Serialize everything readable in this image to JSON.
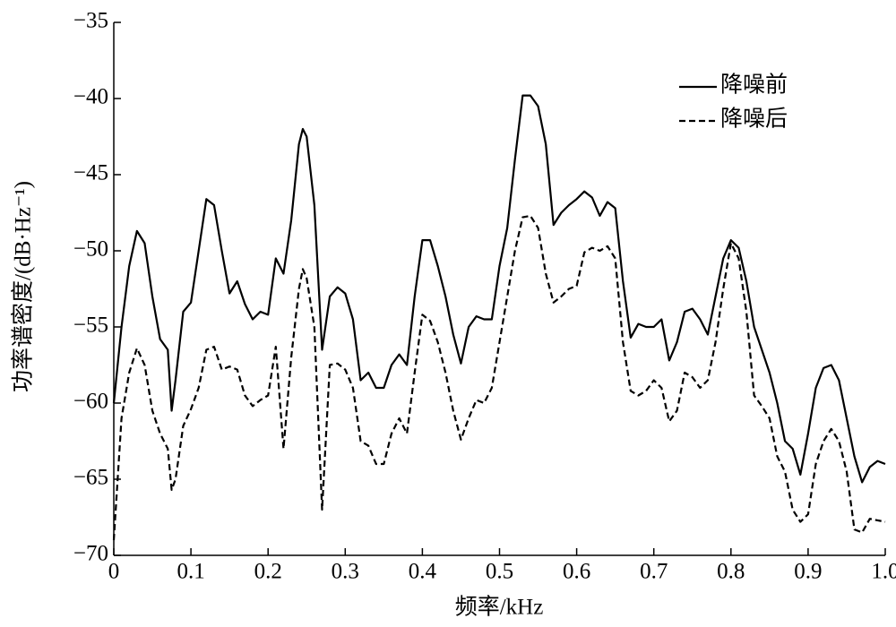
{
  "chart_data": {
    "type": "line",
    "xlabel": "频率/kHz",
    "ylabel": "功率谱密度/(dB·Hz⁻¹)",
    "x": [
      0,
      0.01,
      0.02,
      0.03,
      0.04,
      0.05,
      0.06,
      0.07,
      0.075,
      0.08,
      0.09,
      0.1,
      0.11,
      0.12,
      0.13,
      0.14,
      0.15,
      0.16,
      0.17,
      0.18,
      0.19,
      0.2,
      0.21,
      0.22,
      0.23,
      0.24,
      0.245,
      0.25,
      0.26,
      0.27,
      0.28,
      0.29,
      0.3,
      0.31,
      0.32,
      0.33,
      0.34,
      0.35,
      0.36,
      0.37,
      0.38,
      0.39,
      0.4,
      0.41,
      0.42,
      0.43,
      0.44,
      0.45,
      0.46,
      0.47,
      0.48,
      0.49,
      0.5,
      0.51,
      0.52,
      0.53,
      0.54,
      0.55,
      0.56,
      0.57,
      0.58,
      0.59,
      0.6,
      0.61,
      0.62,
      0.63,
      0.64,
      0.65,
      0.66,
      0.67,
      0.68,
      0.69,
      0.7,
      0.71,
      0.72,
      0.73,
      0.74,
      0.75,
      0.76,
      0.77,
      0.78,
      0.79,
      0.8,
      0.81,
      0.82,
      0.83,
      0.84,
      0.85,
      0.86,
      0.87,
      0.88,
      0.89,
      0.9,
      0.91,
      0.92,
      0.93,
      0.94,
      0.95,
      0.96,
      0.97,
      0.98,
      0.99,
      1.0
    ],
    "series": [
      {
        "name": "降噪前",
        "color": "#000000",
        "line_style": "solid",
        "values": [
          -60,
          -55,
          -51,
          -48.7,
          -49.5,
          -53,
          -55.8,
          -56.5,
          -60.5,
          -58.5,
          -54,
          -53.4,
          -50,
          -46.6,
          -47,
          -50,
          -52.8,
          -52,
          -53.5,
          -54.5,
          -54,
          -54.2,
          -50.5,
          -51.5,
          -48,
          -43,
          -42,
          -42.5,
          -47,
          -56.5,
          -53,
          -52.4,
          -52.8,
          -54.5,
          -58.5,
          -58,
          -59,
          -59,
          -57.5,
          -56.8,
          -57.5,
          -53,
          -49.3,
          -49.3,
          -51,
          -53,
          -55.5,
          -57.4,
          -55,
          -54.3,
          -54.5,
          -54.5,
          -51,
          -48.5,
          -44,
          -39.8,
          -39.8,
          -40.5,
          -43,
          -48.3,
          -47.5,
          -47,
          -46.6,
          -46.1,
          -46.5,
          -47.7,
          -46.8,
          -47.2,
          -52,
          -55.7,
          -54.8,
          -55,
          -55,
          -54.5,
          -57.2,
          -56,
          -54,
          -53.8,
          -54.5,
          -55.5,
          -53,
          -50.5,
          -49.3,
          -49.8,
          -52,
          -55,
          -56.5,
          -58,
          -60,
          -62.5,
          -63,
          -64.7,
          -62,
          -59,
          -57.7,
          -57.5,
          -58.5,
          -61,
          -63.5,
          -65.2,
          -64.2,
          -63.8,
          -64
        ]
      },
      {
        "name": "降噪后",
        "color": "#000000",
        "line_style": "dashed",
        "values": [
          -69,
          -61,
          -58,
          -56.4,
          -57.5,
          -60.5,
          -62,
          -63,
          -65.7,
          -65,
          -61.5,
          -60.4,
          -59,
          -56.5,
          -56.3,
          -57.8,
          -57.6,
          -57.8,
          -59.5,
          -60.2,
          -59.8,
          -59.5,
          -56.3,
          -63,
          -57,
          -52.5,
          -51.2,
          -51.8,
          -55,
          -67,
          -57.5,
          -57.4,
          -57.8,
          -59,
          -62.5,
          -62.8,
          -64,
          -64,
          -62,
          -61,
          -62,
          -58,
          -54.2,
          -54.6,
          -56,
          -58,
          -60.5,
          -62.4,
          -61,
          -59.8,
          -60,
          -59,
          -56,
          -53,
          -50,
          -47.8,
          -47.7,
          -48.5,
          -51.5,
          -53.4,
          -53,
          -52.5,
          -52.3,
          -50.1,
          -49.8,
          -50,
          -49.7,
          -50.5,
          -56,
          -59.2,
          -59.5,
          -59.2,
          -58.5,
          -59,
          -61.2,
          -60.5,
          -58,
          -58.3,
          -59,
          -58.5,
          -56,
          -52.5,
          -49.5,
          -50.5,
          -54,
          -59.5,
          -60.2,
          -61,
          -63.5,
          -64.5,
          -67,
          -67.8,
          -67.3,
          -64,
          -62.5,
          -61.7,
          -62.5,
          -64.5,
          -68.3,
          -68.5,
          -67.6,
          -67.7,
          -67.8
        ]
      }
    ],
    "xlim": [
      0,
      1.0
    ],
    "xticks": [
      0,
      0.1,
      0.2,
      0.3,
      0.4,
      0.5,
      0.6,
      0.7,
      0.8,
      0.9,
      {
        "value": 1.0,
        "label": "1.0"
      }
    ],
    "ylim": [
      -70,
      -35
    ],
    "yticks": [
      {
        "value": -70,
        "label": "−70"
      },
      {
        "value": -65,
        "label": "−65"
      },
      {
        "value": -60,
        "label": "−60"
      },
      {
        "value": -55,
        "label": "−55"
      },
      {
        "value": -50,
        "label": "−50"
      },
      {
        "value": -45,
        "label": "−45"
      },
      {
        "value": -40,
        "label": "−40"
      },
      {
        "value": -35,
        "label": "−35"
      }
    ],
    "grid": false,
    "legend": "upper right"
  }
}
